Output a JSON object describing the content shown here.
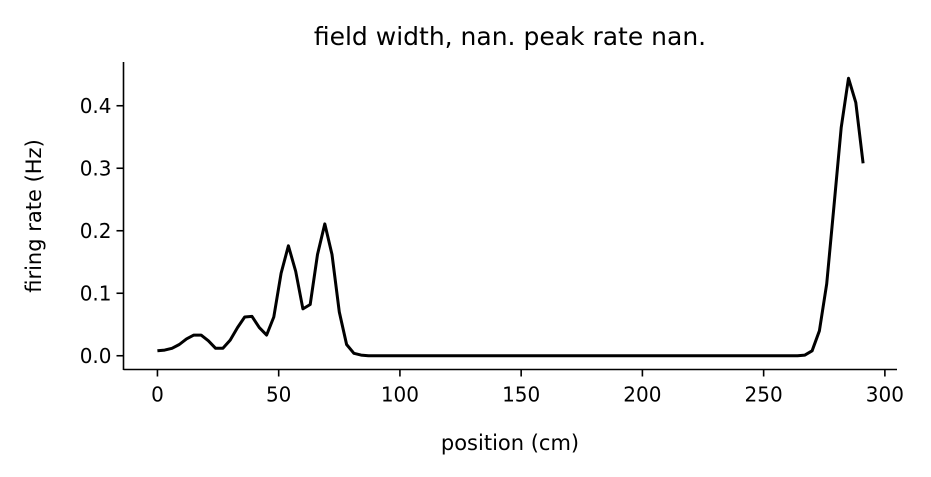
{
  "chart_data": {
    "type": "line",
    "title": "field width, nan. peak rate nan.",
    "xlabel": "position (cm)",
    "ylabel": "firing rate (Hz)",
    "xlim": [
      -14,
      305
    ],
    "ylim": [
      -0.022,
      0.47
    ],
    "xticks": [
      0,
      50,
      100,
      150,
      200,
      250,
      300
    ],
    "xtick_labels": [
      "0",
      "50",
      "100",
      "150",
      "200",
      "250",
      "300"
    ],
    "yticks": [
      0.0,
      0.1,
      0.2,
      0.3,
      0.4
    ],
    "ytick_labels": [
      "0.0",
      "0.1",
      "0.2",
      "0.3",
      "0.4"
    ],
    "grid": false,
    "series": [
      {
        "color": "#000000",
        "x": [
          0,
          3,
          6,
          9,
          12,
          15,
          18,
          21,
          24,
          27,
          30,
          33,
          36,
          39,
          42,
          45,
          48,
          51,
          54,
          57,
          60,
          63,
          66,
          69,
          72,
          75,
          78,
          81,
          84,
          87,
          90,
          100,
          150,
          200,
          250,
          260,
          264,
          267,
          270,
          273,
          276,
          279,
          282,
          285,
          288,
          291
        ],
        "y": [
          0.008,
          0.009,
          0.012,
          0.018,
          0.027,
          0.033,
          0.033,
          0.024,
          0.012,
          0.012,
          0.025,
          0.045,
          0.062,
          0.063,
          0.045,
          0.033,
          0.062,
          0.132,
          0.176,
          0.135,
          0.075,
          0.082,
          0.162,
          0.211,
          0.162,
          0.07,
          0.018,
          0.004,
          0.001,
          0.0,
          0.0,
          0.0,
          0.0,
          0.0,
          0.0,
          0.0,
          0.0,
          0.001,
          0.008,
          0.04,
          0.115,
          0.24,
          0.365,
          0.444,
          0.405,
          0.308
        ]
      }
    ]
  }
}
